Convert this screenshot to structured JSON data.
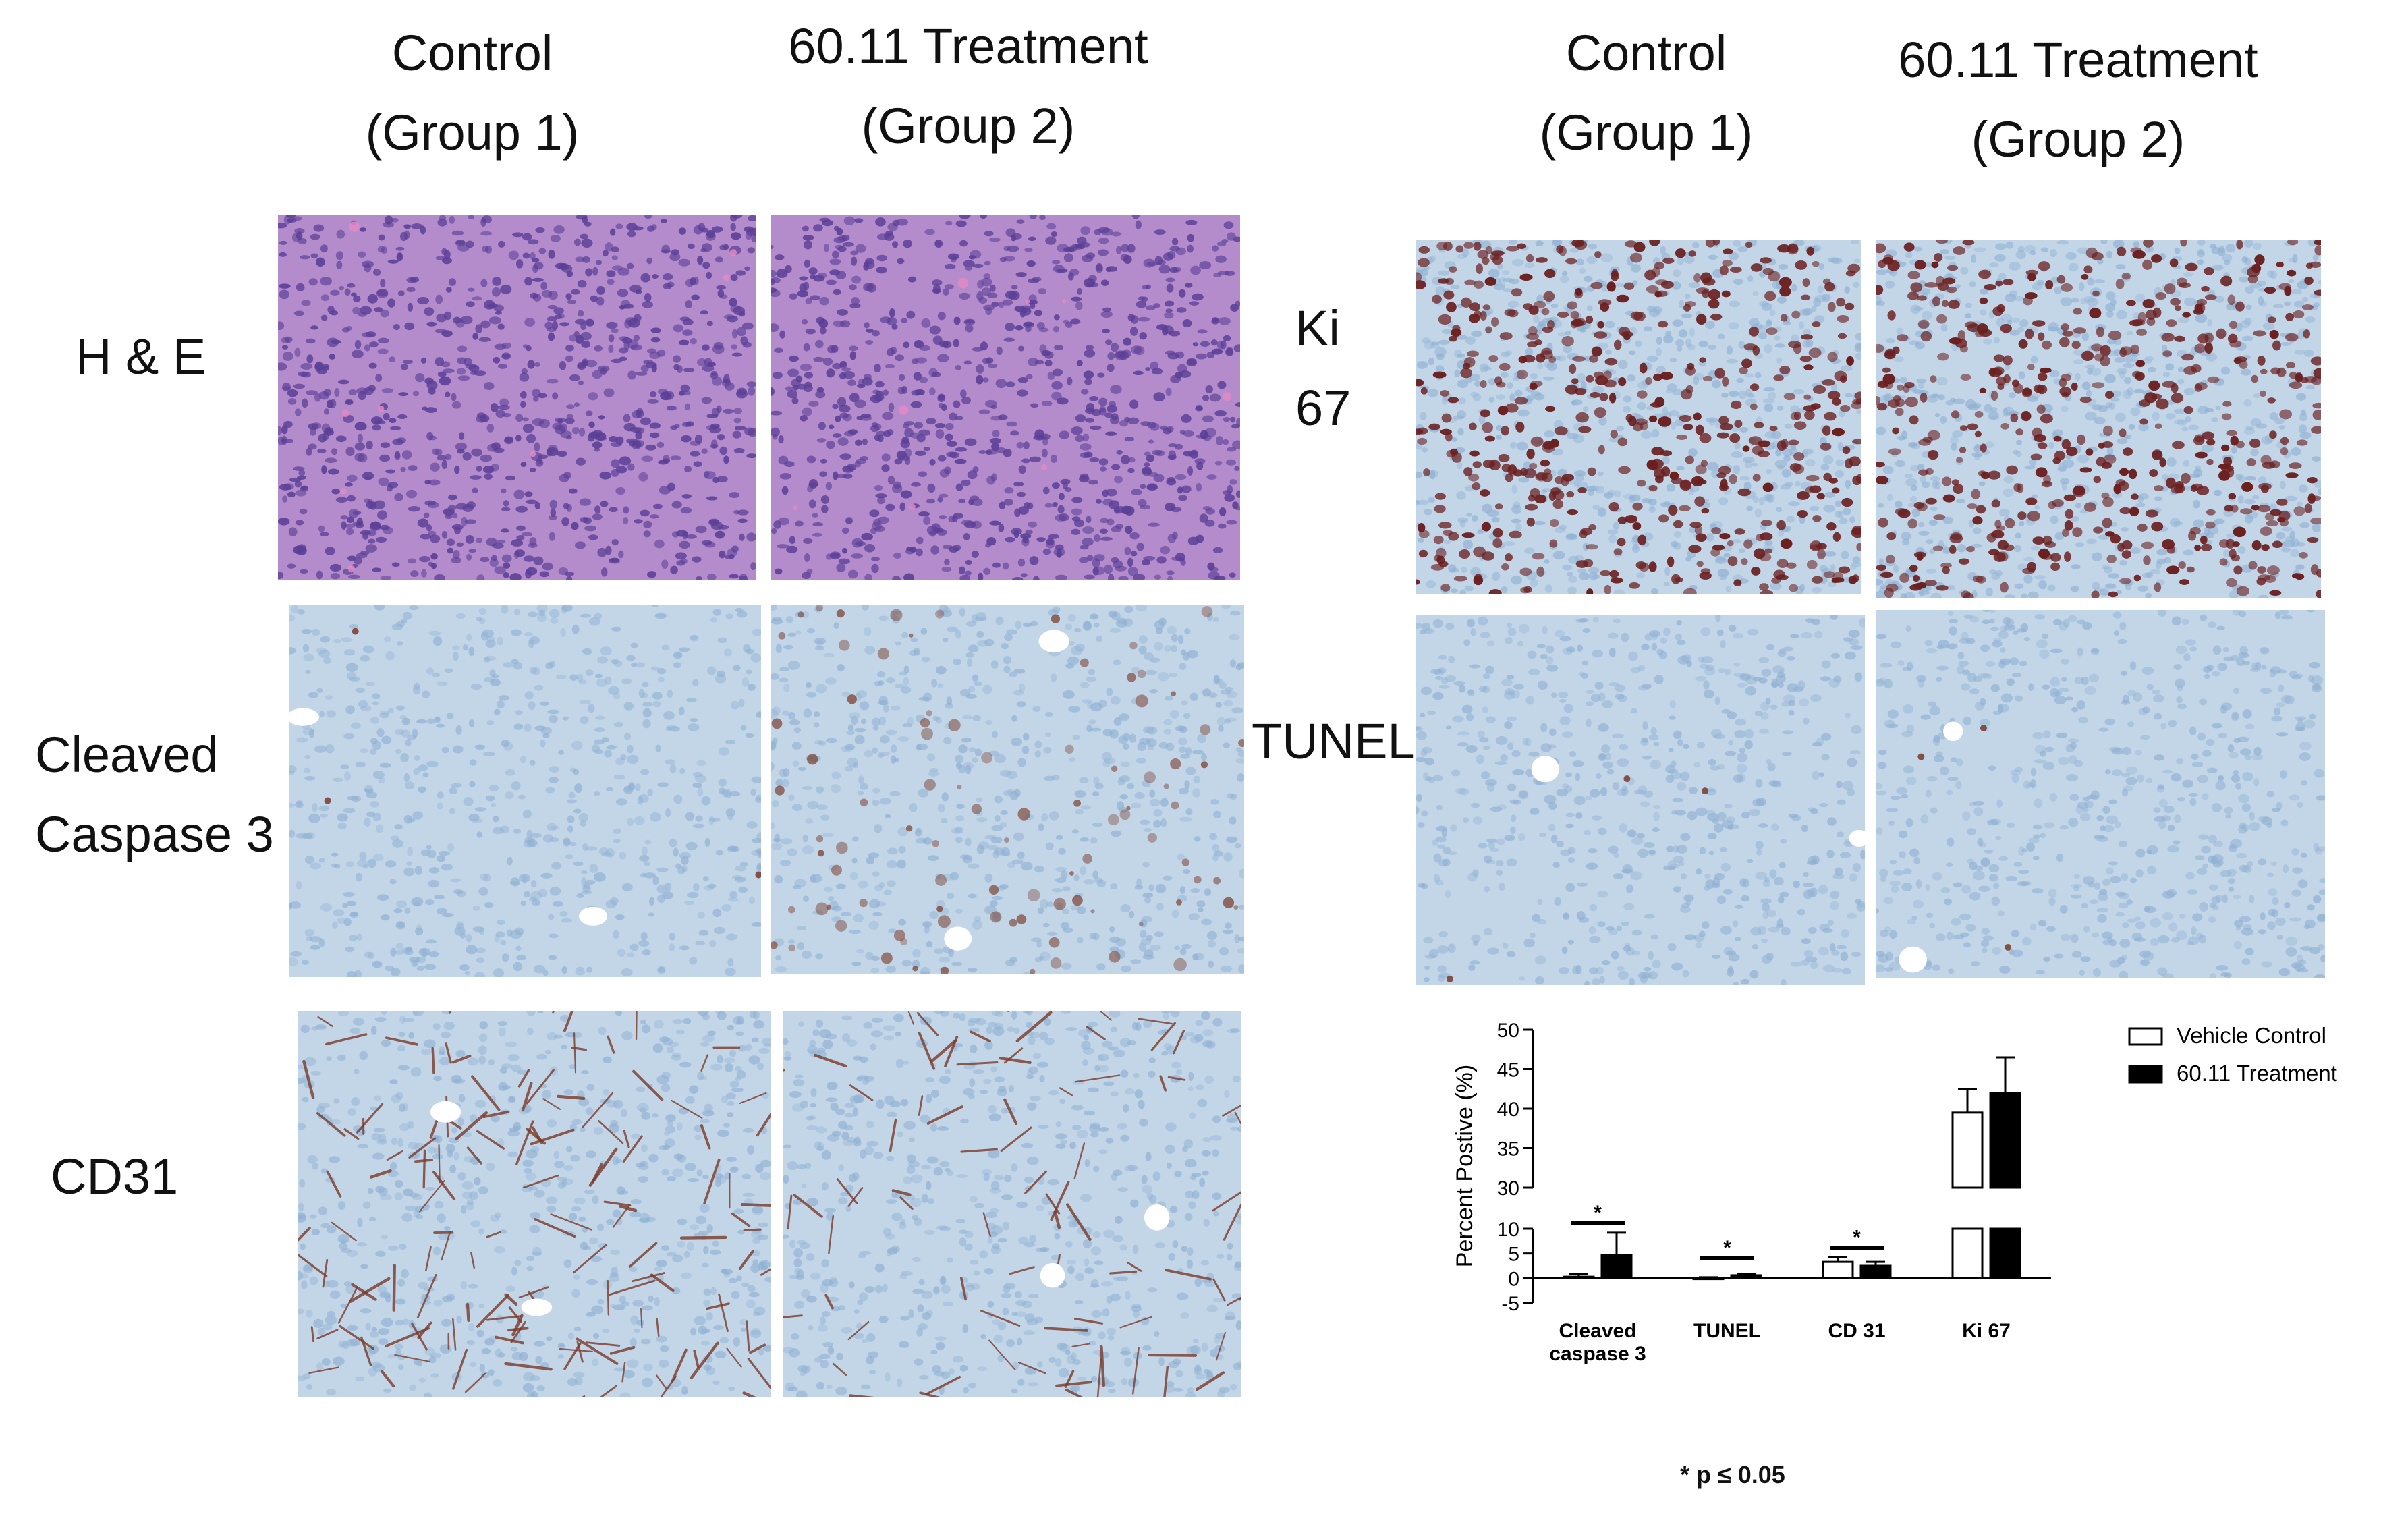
{
  "left_block": {
    "columns": [
      {
        "line1": "Control",
        "line2": "(Group 1)"
      },
      {
        "line1": "60.11 Treatment",
        "line2": "(Group 2)"
      }
    ],
    "rows": [
      {
        "label": [
          "H & E"
        ],
        "stain": "he"
      },
      {
        "label": [
          "Cleaved",
          "Caspase 3"
        ],
        "stain": "cc3"
      },
      {
        "label": [
          "CD31"
        ],
        "stain": "cd31"
      }
    ]
  },
  "right_block": {
    "columns": [
      {
        "line1": "Control",
        "line2": "(Group 1)"
      },
      {
        "line1": "60.11 Treatment",
        "line2": "(Group 2)"
      }
    ],
    "rows": [
      {
        "label": [
          "Ki",
          "67"
        ],
        "stain": "ki67"
      },
      {
        "label": [
          "TUNEL"
        ],
        "stain": "tunel"
      }
    ]
  },
  "stain_colors": {
    "he_bg": "#b48ccc",
    "he_nuclei": "#5a3f96",
    "he_pink": "#e58ac4",
    "ihc_bg": "#c3d6e8",
    "ihc_nuclei": "#8fb0d2",
    "ihc_brown": "#7a3a28",
    "ki67_brown": "#6b1f1f"
  },
  "chart_data": {
    "type": "bar",
    "ylabel": "Percent Postive (%)",
    "categories": [
      "Cleaved caspase 3",
      "TUNEL",
      "CD 31",
      "Ki 67"
    ],
    "category_lines": [
      [
        "Cleaved",
        "caspase 3"
      ],
      [
        "TUNEL"
      ],
      [
        "CD 31"
      ],
      [
        "Ki 67"
      ]
    ],
    "series": [
      {
        "name": "Vehicle Control",
        "fill": "#ffffff",
        "values": [
          0.3,
          0.1,
          3.3,
          39.5
        ],
        "errors": [
          0.5,
          0.1,
          0.9,
          3.0
        ]
      },
      {
        "name": "60.11 Treatment",
        "fill": "#000000",
        "values": [
          4.7,
          0.6,
          2.5,
          42.0
        ],
        "errors": [
          4.5,
          0.3,
          0.8,
          4.5
        ]
      }
    ],
    "y_axis_broken": true,
    "lower_segment": {
      "range": [
        -5,
        10
      ],
      "ticks": [
        -5,
        0,
        5,
        10
      ]
    },
    "upper_segment": {
      "range": [
        30,
        50
      ],
      "ticks": [
        30,
        35,
        40,
        45,
        50
      ]
    },
    "significance_marker": "*",
    "significant_categories": [
      0,
      1,
      2
    ],
    "legend_position": "top-right",
    "footnote": "* p ≤ 0.05"
  }
}
